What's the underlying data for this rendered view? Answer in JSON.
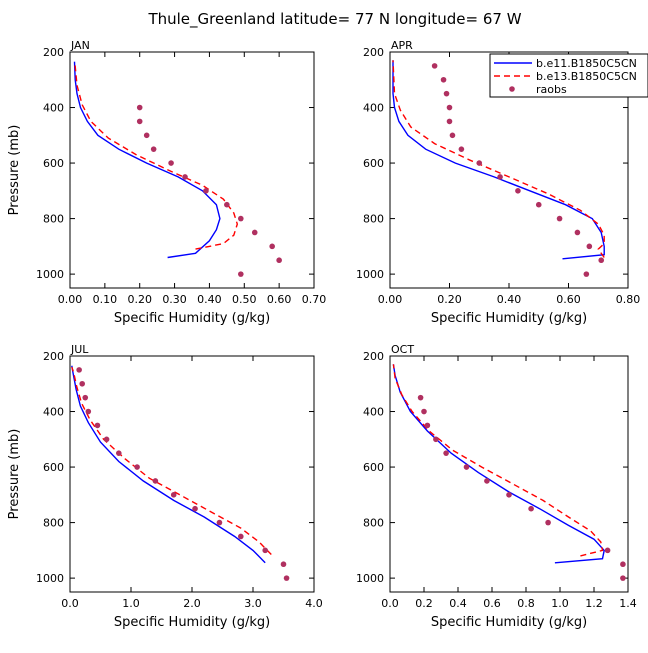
{
  "figure": {
    "title": "Thule_Greenland   latitude= 77 N longitude= 67 W"
  },
  "legend": {
    "entries": [
      {
        "label": "b.e11.B1850C5CN",
        "color": "#0000ff",
        "style": "solid"
      },
      {
        "label": "b.e13.B1850C5CN",
        "color": "#ff0000",
        "style": "dashed"
      },
      {
        "label": "raobs",
        "color": "#b03060",
        "style": "dot"
      }
    ],
    "placement": "top-right of APR panel"
  },
  "chart_data": [
    {
      "type": "line",
      "panel_label": "JAN",
      "xlabel": "Specific Humidity (g/kg)",
      "ylabel": "Pressure (mb)",
      "xlim": [
        0,
        0.7
      ],
      "ylim": [
        200,
        1050
      ],
      "y_inverted": true,
      "xticks": [
        0,
        0.1,
        0.2,
        0.3,
        0.4,
        0.5,
        0.6,
        0.7
      ],
      "xtick_labels": [
        "0.00",
        "0.10",
        "0.20",
        "0.30",
        "0.40",
        "0.50",
        "0.60",
        "0.70"
      ],
      "yticks": [
        200,
        400,
        600,
        800,
        1000
      ],
      "ytick_labels": [
        "200",
        "400",
        "600",
        "800",
        "1000"
      ],
      "series": [
        {
          "name": "b.e11.B1850C5CN",
          "color": "#0000ff",
          "dash": "",
          "x": [
            0.28,
            0.36,
            0.4,
            0.42,
            0.43,
            0.42,
            0.38,
            0.31,
            0.22,
            0.14,
            0.08,
            0.05,
            0.03,
            0.02,
            0.015,
            0.013
          ],
          "y": [
            940,
            925,
            880,
            840,
            800,
            750,
            700,
            650,
            600,
            550,
            500,
            450,
            400,
            350,
            300,
            235
          ]
        },
        {
          "name": "b.e13.B1850C5CN",
          "color": "#ff0000",
          "dash": "6,4",
          "x": [
            0.36,
            0.44,
            0.47,
            0.48,
            0.47,
            0.44,
            0.38,
            0.29,
            0.19,
            0.11,
            0.06,
            0.035,
            0.02,
            0.014
          ],
          "y": [
            910,
            890,
            860,
            820,
            780,
            730,
            680,
            630,
            570,
            510,
            450,
            390,
            320,
            240
          ]
        }
      ],
      "points": {
        "name": "raobs",
        "color": "#b03060",
        "x": [
          0.49,
          0.6,
          0.58,
          0.53,
          0.49,
          0.45,
          0.39,
          0.33,
          0.29,
          0.24,
          0.22,
          0.2,
          0.2
        ],
        "y": [
          1000,
          950,
          900,
          850,
          800,
          750,
          700,
          650,
          600,
          550,
          500,
          450,
          400
        ]
      }
    },
    {
      "type": "line",
      "panel_label": "APR",
      "xlabel": "Specific Humidity (g/kg)",
      "ylabel": "Pressure (mb)",
      "xlim": [
        0,
        0.8
      ],
      "ylim": [
        200,
        1050
      ],
      "y_inverted": true,
      "xticks": [
        0,
        0.2,
        0.4,
        0.6,
        0.8
      ],
      "xtick_labels": [
        "0.00",
        "0.20",
        "0.40",
        "0.60",
        "0.80"
      ],
      "yticks": [
        200,
        400,
        600,
        800,
        1000
      ],
      "ytick_labels": [
        "200",
        "400",
        "600",
        "800",
        "1000"
      ],
      "series": [
        {
          "name": "b.e11.B1850C5CN",
          "color": "#0000ff",
          "dash": "",
          "x": [
            0.58,
            0.72,
            0.72,
            0.71,
            0.68,
            0.59,
            0.47,
            0.35,
            0.22,
            0.12,
            0.06,
            0.03,
            0.015,
            0.01,
            0.01
          ],
          "y": [
            945,
            930,
            900,
            850,
            800,
            750,
            700,
            650,
            600,
            550,
            500,
            450,
            400,
            350,
            230
          ]
        },
        {
          "name": "b.e13.B1850C5CN",
          "color": "#ff0000",
          "dash": "6,4",
          "x": [
            0.72,
            0.7,
            0.72,
            0.72,
            0.7,
            0.64,
            0.53,
            0.4,
            0.27,
            0.15,
            0.07,
            0.035,
            0.015,
            0.01
          ],
          "y": [
            940,
            910,
            890,
            860,
            820,
            770,
            710,
            650,
            590,
            530,
            470,
            410,
            350,
            230
          ]
        }
      ],
      "points": {
        "name": "raobs",
        "color": "#b03060",
        "x": [
          0.66,
          0.71,
          0.67,
          0.63,
          0.57,
          0.5,
          0.43,
          0.37,
          0.3,
          0.24,
          0.21,
          0.2,
          0.2,
          0.19,
          0.18,
          0.15
        ],
        "y": [
          1000,
          950,
          900,
          850,
          800,
          750,
          700,
          650,
          600,
          550,
          500,
          450,
          400,
          350,
          300,
          250
        ]
      }
    },
    {
      "type": "line",
      "panel_label": "JUL",
      "xlabel": "Specific Humidity (g/kg)",
      "ylabel": "Pressure (mb)",
      "xlim": [
        0,
        4.0
      ],
      "ylim": [
        200,
        1050
      ],
      "y_inverted": true,
      "xticks": [
        0,
        1,
        2,
        3,
        4
      ],
      "xtick_labels": [
        "0.0",
        "1.0",
        "2.0",
        "3.0",
        "4.0"
      ],
      "yticks": [
        200,
        400,
        600,
        800,
        1000
      ],
      "ytick_labels": [
        "200",
        "400",
        "600",
        "800",
        "1000"
      ],
      "series": [
        {
          "name": "b.e11.B1850C5CN",
          "color": "#0000ff",
          "dash": "",
          "x": [
            3.2,
            3.0,
            2.7,
            2.2,
            1.7,
            1.2,
            0.8,
            0.5,
            0.3,
            0.17,
            0.1,
            0.05,
            0.03
          ],
          "y": [
            945,
            900,
            850,
            780,
            720,
            650,
            580,
            510,
            440,
            380,
            320,
            260,
            235
          ]
        },
        {
          "name": "b.e13.B1850C5CN",
          "color": "#ff0000",
          "dash": "6,4",
          "x": [
            3.3,
            3.1,
            2.8,
            2.3,
            1.8,
            1.3,
            0.9,
            0.55,
            0.33,
            0.19,
            0.11,
            0.06,
            0.03
          ],
          "y": [
            915,
            870,
            820,
            760,
            700,
            640,
            570,
            500,
            430,
            370,
            310,
            260,
            240
          ]
        }
      ],
      "points": {
        "name": "raobs",
        "color": "#b03060",
        "x": [
          3.55,
          3.5,
          3.2,
          2.8,
          2.45,
          2.05,
          1.7,
          1.4,
          1.1,
          0.8,
          0.6,
          0.45,
          0.3,
          0.25,
          0.2,
          0.15
        ],
        "y": [
          1000,
          950,
          900,
          850,
          800,
          750,
          700,
          650,
          600,
          550,
          500,
          450,
          400,
          350,
          300,
          250
        ]
      }
    },
    {
      "type": "line",
      "panel_label": "OCT",
      "xlabel": "Specific Humidity (g/kg)",
      "ylabel": "Pressure (mb)",
      "xlim": [
        0,
        1.4
      ],
      "ylim": [
        200,
        1050
      ],
      "y_inverted": true,
      "xticks": [
        0,
        0.2,
        0.4,
        0.6,
        0.8,
        1.0,
        1.2,
        1.4
      ],
      "xtick_labels": [
        "0.0",
        "0.2",
        "0.4",
        "0.6",
        "0.8",
        "1.0",
        "1.2",
        "1.4"
      ],
      "yticks": [
        200,
        400,
        600,
        800,
        1000
      ],
      "ytick_labels": [
        "200",
        "400",
        "600",
        "800",
        "1000"
      ],
      "series": [
        {
          "name": "b.e11.B1850C5CN",
          "color": "#0000ff",
          "dash": "",
          "x": [
            0.97,
            1.25,
            1.26,
            1.2,
            1.05,
            0.88,
            0.7,
            0.52,
            0.36,
            0.22,
            0.12,
            0.06,
            0.03,
            0.02
          ],
          "y": [
            945,
            930,
            900,
            860,
            810,
            750,
            690,
            620,
            550,
            470,
            400,
            330,
            270,
            230
          ]
        },
        {
          "name": "b.e13.B1850C5CN",
          "color": "#ff0000",
          "dash": "6,4",
          "x": [
            1.12,
            1.25,
            1.24,
            1.18,
            1.05,
            0.9,
            0.72,
            0.54,
            0.37,
            0.23,
            0.13,
            0.07,
            0.03,
            0.02
          ],
          "y": [
            920,
            900,
            870,
            830,
            780,
            720,
            660,
            600,
            540,
            470,
            400,
            340,
            280,
            230
          ]
        }
      ],
      "points": {
        "name": "raobs",
        "color": "#b03060",
        "x": [
          1.37,
          1.37,
          1.28,
          0.93,
          0.83,
          0.7,
          0.57,
          0.45,
          0.33,
          0.27,
          0.22,
          0.2,
          0.18
        ],
        "y": [
          1000,
          950,
          900,
          800,
          750,
          700,
          650,
          600,
          550,
          500,
          450,
          400,
          350
        ]
      }
    }
  ]
}
